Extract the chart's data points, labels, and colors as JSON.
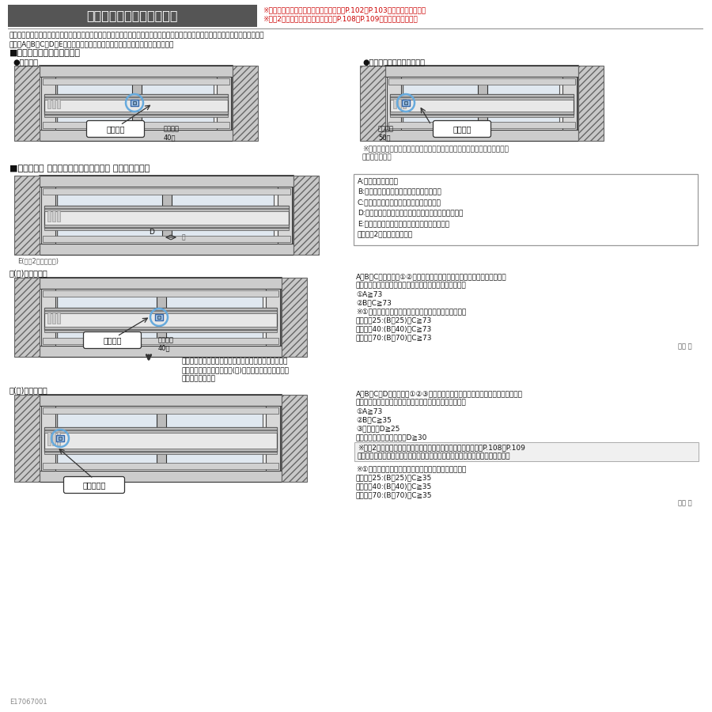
{
  "bg_color": "#ffffff",
  "title_box_bg": "#555555",
  "title_text": "戸先錠仕様採用時のご注意",
  "title_color": "#ffffff",
  "note_color": "#cc0000",
  "note1": "※クレセント仕様の引き残しについては、P.102・P.103をご参照ください。",
  "note2": "※偏芯2枚建の場合の引き残し寸法はP.108・P.109をご参照ください。",
  "body_text1": "戸先錠仕様は引き残しがあります。内窓の取付け位置により、外窓のクレセントの柄が内窓と干渉し施解錠できない場合があります。",
  "body_text2": "以下のA・B・C・D・E寸法を採寸時に確認し、干渉を事前に回避してください。",
  "sec1_title": "■戸先錠引き残しによる干渉",
  "sec1_sub1": "●窓タイプ",
  "sec1_sub2": "●テラス・ランマ通しタイプ",
  "sec1_note": "※図はテラスタイプです。ランマ通しタイプの引き残し寸法はテラスタイプ\n　と同じです。",
  "label_kansha1": "干渉する",
  "label_hikizan1": "引き残し\n40㎜",
  "label_hikizan2": "引き残し\n50㎜",
  "label_kansha2": "干渉する",
  "sec2_title": "■戸先錠仕様 外窓クレセントの干渉回避 採寸のポイント",
  "legend_A": "A:木額縁の見込寸法",
  "legend_B": "B:内召せ框からの木額縁室内面までの距離",
  "legend_C": "C:クレセント柄の内召合せ框からの出寸法",
  "legend_D": "D:クレセント柄の側面から内召合せ框中心までの距離",
  "legend_E1": "E:クレセント柄の側面から開口の端までの距離",
  "legend_E2": "　（偏芯2枚建の場合のみ）",
  "sec3_title": "正(左)勝手の場合",
  "sec3_cond1": "A・B・Cを測定し、①②の条件を満たしていれば、クレセント施解錠時に",
  "sec3_cond2": "外窓クレセントの柄が内窓にぶつかることはありません。",
  "sec3_cond3": "①A≧73",
  "sec3_cond4": "②B－C≧73",
  "sec3_cond5": "※①で木額縁の見込が足りず、ふかし枠を使用した場合",
  "sec3_cond6": "ふかし枠25:(B＋25)－C≧73",
  "sec3_cond7": "ふかし枠40:(B＋40)－C≧73",
  "sec3_cond8": "ふかし枠70:(B＋70)－C≧73",
  "unit1": "単位 ㎜",
  "sec3_label_kansha": "干渉する",
  "sec3_label_hiki1": "引き残し",
  "sec3_label_hiki2": "40㎜",
  "sec3_body1": "額縁見込寸法が小さく、外窓のクレセントの柄が内窓に",
  "sec3_body2": "ぶつかってしまう場合、逆(右)勝手にすると回避可能な",
  "sec3_body3": "場合があります。",
  "sec4_title": "逆(右)勝手の場合",
  "sec4_cond1": "A・B・C・Dを測定し、①②③の条件を満たしていれば、クレセント施解錠時に",
  "sec4_cond2": "外窓クレセントの柄が内窓にぶつかることはありません。",
  "sec4_cond3": "①A≧73",
  "sec4_cond4": "②B－C≧35",
  "sec4_cond5": "③窓タイプD≧25",
  "sec4_cond6": "テラス・ランマ通しタイプD≧30",
  "sec4_note1": "※偏芯2枚建で、外窓と内窓の召合せの中心を揃えない場合は、P.108・P.109",
  "sec4_note2": "を参照しクレセントの柄が内窓の外召合せ框に干渉しないか確認してください。",
  "sec4_cond7": "※①で木額縁の見込が足りず、ふかし枠を使用した場合",
  "sec4_cond8": "ふかし枠25:(B＋25)－C≧35",
  "sec4_cond9": "ふかし枠40:(B＋40)－C≧35",
  "sec4_cond10": "ふかし枠70:(B＋70)－C≧35",
  "unit2": "単位 ㎜",
  "sec4_label_no": "干渉しない",
  "footer": "E17067001",
  "mid_label_E": "E(偏芯2枚建の場合)"
}
